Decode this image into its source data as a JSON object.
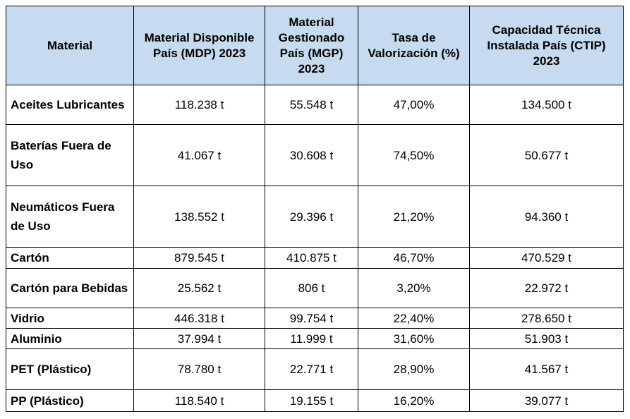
{
  "table": {
    "headers": [
      "Material",
      "Material Disponible País (MDP) 2023",
      "Material Gestionado País (MGP) 2023",
      "Tasa de Valorización (%)",
      "Capacidad Técnica Instalada País (CTIP) 2023"
    ],
    "rows": [
      [
        "Aceites Lubricantes",
        "118.238 t",
        "55.548 t",
        "47,00%",
        "134.500 t"
      ],
      [
        "Baterías Fuera de Uso",
        "41.067 t",
        "30.608 t",
        "74,50%",
        "50.677 t"
      ],
      [
        "Neumáticos Fuera de Uso",
        "138.552 t",
        "29.396 t",
        "21,20%",
        "94.360 t"
      ],
      [
        "Cartón",
        "879.545 t",
        "410.875 t",
        "46,70%",
        "470.529 t"
      ],
      [
        "Cartón para Bebidas",
        "25.562 t",
        "806 t",
        "3,20%",
        "22.972 t"
      ],
      [
        "Vidrio",
        "446.318 t",
        "99.754 t",
        "22,40%",
        "278.650 t"
      ],
      [
        "Aluminio",
        "37.994 t",
        "11.999 t",
        "31,60%",
        "51.903 t"
      ],
      [
        "PET (Plástico)",
        "78.780 t",
        "22.771 t",
        "28,90%",
        "41.567 t"
      ],
      [
        "PP (Plástico)",
        "118.540 t",
        "19.155 t",
        "16,20%",
        "39.077 t"
      ]
    ]
  }
}
